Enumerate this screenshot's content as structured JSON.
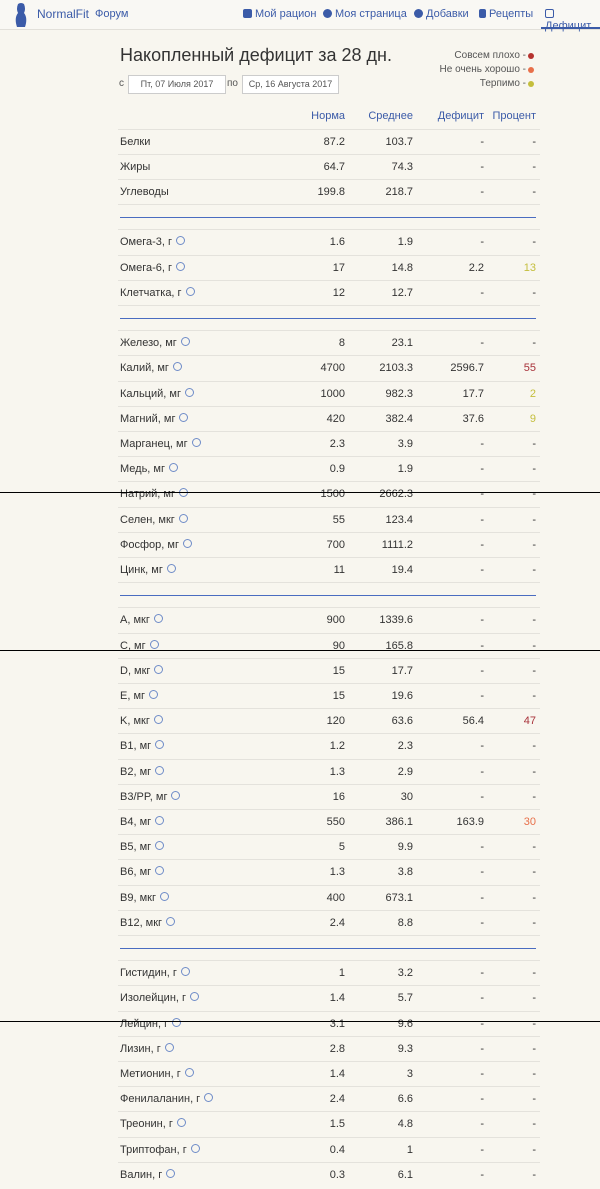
{
  "nav": {
    "brand": "NormalFit",
    "forum": "Форум",
    "links": [
      "Мой рацион",
      "Моя страница",
      "Добавки",
      "Рецепты",
      "Дефицит"
    ]
  },
  "header": {
    "title": "Накопленный дефицит за 28 дн.",
    "from_label": "с",
    "from_date": "Пт, 07 Июля 2017",
    "to_label": "по",
    "to_date": "Ср, 16 Августа 2017"
  },
  "legend": [
    {
      "label": "Совсем плохо -",
      "color": "#b5332e"
    },
    {
      "label": "Не очень хорошо -",
      "color": "#e8704a"
    },
    {
      "label": "Терпимо -",
      "color": "#c4be3c"
    }
  ],
  "table": {
    "columns": [
      "Норма",
      "Среднее",
      "Дефицит",
      "Процент"
    ],
    "groups": [
      {
        "rows": [
          {
            "cells": [
              "Белки",
              "87.2",
              "103.7",
              "-",
              "-"
            ]
          },
          {
            "cells": [
              "Жиры",
              "64.7",
              "74.3",
              "-",
              "-"
            ]
          },
          {
            "cells": [
              "Углеводы",
              "199.8",
              "218.7",
              "-",
              "-"
            ]
          }
        ]
      },
      {
        "rows": [
          {
            "cells": [
              "Омега-3, г",
              "1.6",
              "1.9",
              "-",
              "-"
            ]
          },
          {
            "cells": [
              "Омега-6, г",
              "17",
              "14.8",
              "2.2",
              "13"
            ],
            "color": "#c4be3c"
          },
          {
            "cells": [
              "Клетчатка, г",
              "12",
              "12.7",
              "-",
              "-"
            ]
          }
        ]
      },
      {
        "rows": [
          {
            "cells": [
              "Железо, мг",
              "8",
              "23.1",
              "-",
              "-"
            ]
          },
          {
            "cells": [
              "Калий, мг",
              "4700",
              "2103.3",
              "2596.7",
              "55"
            ],
            "color": "#a8323a"
          },
          {
            "cells": [
              "Кальций, мг",
              "1000",
              "982.3",
              "17.7",
              "2"
            ],
            "color": "#c4be3c"
          },
          {
            "cells": [
              "Магний, мг",
              "420",
              "382.4",
              "37.6",
              "9"
            ],
            "color": "#c4be3c"
          },
          {
            "cells": [
              "Марганец, мг",
              "2.3",
              "3.9",
              "-",
              "-"
            ]
          },
          {
            "cells": [
              "Медь, мг",
              "0.9",
              "1.9",
              "-",
              "-"
            ]
          },
          {
            "cells": [
              "Натрий, мг",
              "1500",
              "2662.3",
              "-",
              "-"
            ]
          },
          {
            "cells": [
              "Селен, мкг",
              "55",
              "123.4",
              "-",
              "-"
            ]
          },
          {
            "cells": [
              "Фосфор, мг",
              "700",
              "1111.2",
              "-",
              "-"
            ]
          },
          {
            "cells": [
              "Цинк, мг",
              "11",
              "19.4",
              "-",
              "-"
            ]
          }
        ]
      },
      {
        "rows": [
          {
            "cells": [
              "A, мкг",
              "900",
              "1339.6",
              "-",
              "-"
            ]
          },
          {
            "cells": [
              "C, мг",
              "90",
              "165.8",
              "-",
              "-"
            ]
          },
          {
            "cells": [
              "D, мкг",
              "15",
              "17.7",
              "-",
              "-"
            ]
          },
          {
            "cells": [
              "E, мг",
              "15",
              "19.6",
              "-",
              "-"
            ]
          },
          {
            "cells": [
              "K, мкг",
              "120",
              "63.6",
              "56.4",
              "47"
            ],
            "color": "#a8323a"
          },
          {
            "cells": [
              "B1, мг",
              "1.2",
              "2.3",
              "-",
              "-"
            ]
          },
          {
            "cells": [
              "B2, мг",
              "1.3",
              "2.9",
              "-",
              "-"
            ]
          },
          {
            "cells": [
              "B3/PP, мг",
              "16",
              "30",
              "-",
              "-"
            ]
          },
          {
            "cells": [
              "B4, мг",
              "550",
              "386.1",
              "163.9",
              "30"
            ],
            "color": "#e8704a"
          },
          {
            "cells": [
              "B5, мг",
              "5",
              "9.9",
              "-",
              "-"
            ]
          },
          {
            "cells": [
              "B6, мг",
              "1.3",
              "3.8",
              "-",
              "-"
            ]
          },
          {
            "cells": [
              "B9, мкг",
              "400",
              "673.1",
              "-",
              "-"
            ]
          },
          {
            "cells": [
              "B12, мкг",
              "2.4",
              "8.8",
              "-",
              "-"
            ]
          }
        ]
      },
      {
        "rows": [
          {
            "cells": [
              "Гистидин, г",
              "1",
              "3.2",
              "-",
              "-"
            ]
          },
          {
            "cells": [
              "Изолейцин, г",
              "1.4",
              "5.7",
              "-",
              "-"
            ]
          },
          {
            "cells": [
              "Лейцин, г",
              "3.1",
              "9.6",
              "-",
              "-"
            ]
          },
          {
            "cells": [
              "Лизин, г",
              "2.8",
              "9.3",
              "-",
              "-"
            ]
          },
          {
            "cells": [
              "Метионин, г",
              "1.4",
              "3",
              "-",
              "-"
            ]
          },
          {
            "cells": [
              "Фенилаланин, г",
              "2.4",
              "6.6",
              "-",
              "-"
            ]
          },
          {
            "cells": [
              "Треонин, г",
              "1.5",
              "4.8",
              "-",
              "-"
            ]
          },
          {
            "cells": [
              "Триптофан, г",
              "0.4",
              "1",
              "-",
              "-"
            ]
          },
          {
            "cells": [
              "Валин, г",
              "0.3",
              "6.1",
              "-",
              "-"
            ]
          }
        ]
      }
    ]
  }
}
